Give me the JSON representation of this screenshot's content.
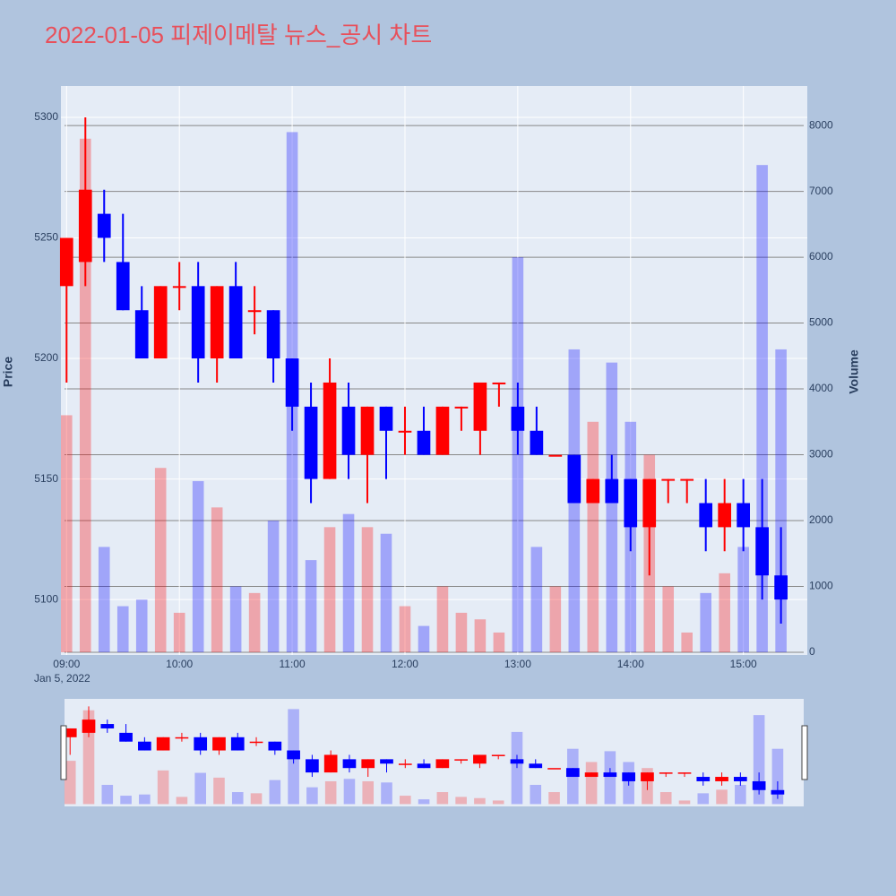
{
  "chart_data": {
    "type": "candlestick",
    "title": "2022-01-05 피제이메탈 뉴스_공시 차트",
    "y_label": "Price",
    "y2_label": "Volume",
    "annotation": "Jan 5, 2022",
    "increasing_color": "#ff0000",
    "decreasing_color": "#0000ff",
    "grid": true,
    "rangeslider": true,
    "xlim": [
      "2022-01-05 08:57",
      "2022-01-05 15:34"
    ],
    "xticks": [
      {
        "value": "2022-01-05 09:00",
        "label": "09:00"
      },
      {
        "value": "2022-01-05 10:00",
        "label": "10:00"
      },
      {
        "value": "2022-01-05 11:00",
        "label": "11:00"
      },
      {
        "value": "2022-01-05 12:00",
        "label": "12:00"
      },
      {
        "value": "2022-01-05 13:00",
        "label": "13:00"
      },
      {
        "value": "2022-01-05 14:00",
        "label": "14:00"
      },
      {
        "value": "2022-01-05 15:00",
        "label": "15:00"
      }
    ],
    "ylim": [
      5077,
      5313
    ],
    "yticks": [
      5100,
      5150,
      5200,
      5250,
      5300
    ],
    "y2lim": [
      -41,
      8600
    ],
    "y2ticks": [
      0,
      1000,
      2000,
      3000,
      4000,
      5000,
      6000,
      7000,
      8000
    ],
    "x": [
      "2022-01-05 09:00",
      "2022-01-05 09:10",
      "2022-01-05 09:20",
      "2022-01-05 09:30",
      "2022-01-05 09:40",
      "2022-01-05 09:50",
      "2022-01-05 10:00",
      "2022-01-05 10:10",
      "2022-01-05 10:20",
      "2022-01-05 10:30",
      "2022-01-05 10:40",
      "2022-01-05 10:50",
      "2022-01-05 11:00",
      "2022-01-05 11:10",
      "2022-01-05 11:20",
      "2022-01-05 11:30",
      "2022-01-05 11:40",
      "2022-01-05 11:50",
      "2022-01-05 12:00",
      "2022-01-05 12:10",
      "2022-01-05 12:20",
      "2022-01-05 12:30",
      "2022-01-05 12:40",
      "2022-01-05 12:50",
      "2022-01-05 13:00",
      "2022-01-05 13:10",
      "2022-01-05 13:20",
      "2022-01-05 13:30",
      "2022-01-05 13:40",
      "2022-01-05 13:50",
      "2022-01-05 14:00",
      "2022-01-05 14:10",
      "2022-01-05 14:20",
      "2022-01-05 14:30",
      "2022-01-05 14:40",
      "2022-01-05 14:50",
      "2022-01-05 15:00",
      "2022-01-05 15:10",
      "2022-01-05 15:20"
    ],
    "open": [
      5230,
      5240,
      5260,
      5240,
      5220,
      5200,
      5230,
      5230,
      5200,
      5230,
      5220,
      5220,
      5200,
      5180,
      5150,
      5180,
      5160,
      5180,
      5170,
      5170,
      5160,
      5180,
      5170,
      5190,
      5180,
      5170,
      5160,
      5160,
      5140,
      5150,
      5150,
      5130,
      5150,
      5150,
      5140,
      5130,
      5140,
      5130,
      5110
    ],
    "high": [
      5250,
      5300,
      5270,
      5260,
      5230,
      5230,
      5240,
      5240,
      5230,
      5240,
      5230,
      5220,
      5200,
      5190,
      5200,
      5190,
      5180,
      5180,
      5180,
      5180,
      5180,
      5180,
      5190,
      5190,
      5190,
      5180,
      5160,
      5160,
      5150,
      5160,
      5150,
      5150,
      5150,
      5150,
      5150,
      5150,
      5150,
      5150,
      5130
    ],
    "low": [
      5190,
      5230,
      5240,
      5220,
      5200,
      5200,
      5220,
      5190,
      5190,
      5200,
      5210,
      5190,
      5170,
      5140,
      5150,
      5150,
      5140,
      5150,
      5160,
      5160,
      5160,
      5170,
      5160,
      5180,
      5160,
      5160,
      5160,
      5140,
      5140,
      5140,
      5120,
      5110,
      5140,
      5140,
      5120,
      5120,
      5120,
      5100,
      5090
    ],
    "close": [
      5250,
      5270,
      5250,
      5220,
      5200,
      5230,
      5230,
      5200,
      5230,
      5200,
      5220,
      5200,
      5180,
      5150,
      5190,
      5160,
      5180,
      5170,
      5170,
      5160,
      5180,
      5180,
      5190,
      5190,
      5170,
      5160,
      5160,
      5140,
      5150,
      5140,
      5130,
      5150,
      5150,
      5150,
      5130,
      5140,
      5130,
      5110,
      5100
    ],
    "volume": [
      3600,
      7800,
      1600,
      700,
      800,
      2800,
      600,
      2600,
      2200,
      1000,
      900,
      2000,
      7900,
      1400,
      1900,
      2100,
      1900,
      1800,
      700,
      400,
      1000,
      600,
      500,
      300,
      6000,
      1600,
      1000,
      4600,
      3500,
      4400,
      3500,
      3000,
      1000,
      300,
      900,
      1200,
      1600,
      7400,
      4600
    ]
  }
}
